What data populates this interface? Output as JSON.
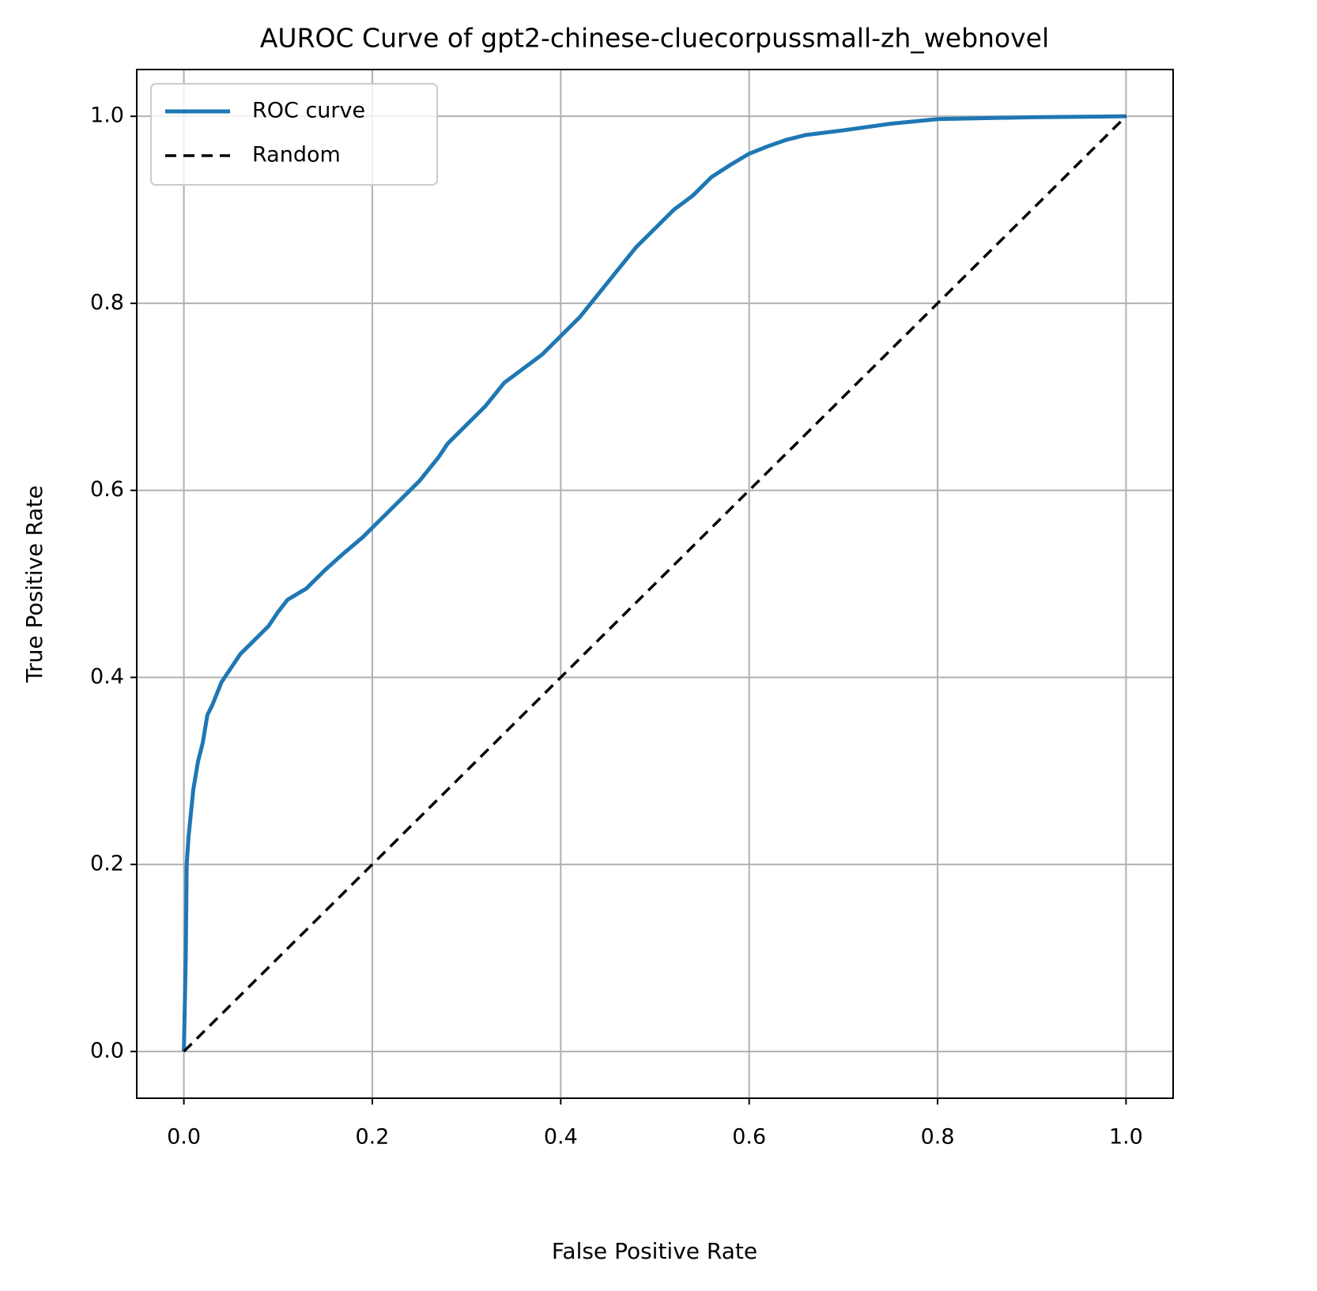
{
  "chart_data": {
    "type": "line",
    "title": "AUROC Curve of gpt2-chinese-cluecorpussmall-zh_webnovel",
    "xlabel": "False Positive Rate",
    "ylabel": "True Positive Rate",
    "xlim": [
      -0.05,
      1.05
    ],
    "ylim": [
      -0.05,
      1.05
    ],
    "xticks": [
      {
        "value": 0,
        "label": "0.0"
      },
      0.2,
      0.4,
      0.6,
      0.8,
      {
        "value": 1,
        "label": "1.0"
      }
    ],
    "yticks": [
      {
        "value": 0,
        "label": "0.0"
      },
      0.2,
      0.4,
      0.6,
      0.8,
      {
        "value": 1,
        "label": "1.0"
      }
    ],
    "grid": true,
    "legend": "upper left",
    "series": [
      {
        "name": "ROC curve",
        "color": "#1f77b4",
        "linestyle": "solid",
        "x": [
          0,
          0.002,
          0.003,
          0.005,
          0.01,
          0.015,
          0.02,
          0.025,
          0.03,
          0.04,
          0.05,
          0.06,
          0.07,
          0.08,
          0.09,
          0.1,
          0.11,
          0.13,
          0.15,
          0.17,
          0.19,
          0.21,
          0.23,
          0.25,
          0.27,
          0.28,
          0.3,
          0.32,
          0.34,
          0.36,
          0.38,
          0.4,
          0.42,
          0.44,
          0.46,
          0.48,
          0.5,
          0.52,
          0.54,
          0.56,
          0.58,
          0.6,
          0.62,
          0.64,
          0.66,
          0.7,
          0.75,
          0.8,
          0.9,
          1.0
        ],
        "values": [
          0,
          0.1,
          0.2,
          0.23,
          0.28,
          0.31,
          0.33,
          0.36,
          0.37,
          0.395,
          0.41,
          0.425,
          0.435,
          0.445,
          0.455,
          0.47,
          0.483,
          0.495,
          0.515,
          0.533,
          0.55,
          0.57,
          0.59,
          0.61,
          0.635,
          0.65,
          0.67,
          0.69,
          0.715,
          0.73,
          0.745,
          0.765,
          0.785,
          0.81,
          0.835,
          0.86,
          0.88,
          0.9,
          0.915,
          0.935,
          0.948,
          0.96,
          0.968,
          0.975,
          0.98,
          0.985,
          0.992,
          0.997,
          0.999,
          1.0
        ]
      },
      {
        "name": "Random",
        "color": "#000000",
        "linestyle": "dashed",
        "x": [
          0,
          1
        ],
        "values": [
          0,
          1
        ]
      }
    ]
  }
}
